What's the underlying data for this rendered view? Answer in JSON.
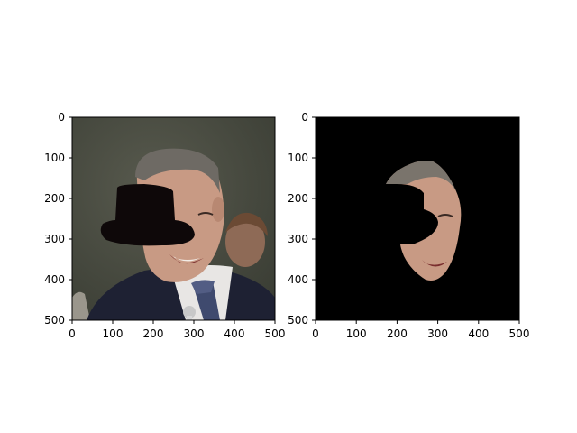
{
  "figure": {
    "background": "#ffffff",
    "axis_color": "#000000"
  },
  "chart_data": [
    {
      "type": "image",
      "content": "photo of a smiling man in a dark suit with a black bowler-hat shape pasted over his upper face",
      "xlim": [
        0,
        500
      ],
      "ylim": [
        500,
        0
      ],
      "xticks": [
        0,
        100,
        200,
        300,
        400,
        500
      ],
      "yticks": [
        0,
        100,
        200,
        300,
        400,
        500
      ],
      "tick_labels_x": [
        "0",
        "100",
        "200",
        "300",
        "400",
        "500"
      ],
      "tick_labels_y": [
        "0",
        "100",
        "200",
        "300",
        "400",
        "500"
      ],
      "colors": {
        "wall": "#4a4d42",
        "suit": "#1e2133",
        "hat": "#0e0809",
        "skin": "#c89a84"
      }
    },
    {
      "type": "image",
      "content": "same face masked out on a black background, with the hat region removed",
      "xlim": [
        0,
        500
      ],
      "ylim": [
        500,
        0
      ],
      "xticks": [
        0,
        100,
        200,
        300,
        400,
        500
      ],
      "yticks": [
        0,
        100,
        200,
        300,
        400,
        500
      ],
      "tick_labels_x": [
        "0",
        "100",
        "200",
        "300",
        "400",
        "500"
      ],
      "tick_labels_y": [
        "0",
        "100",
        "200",
        "300",
        "400",
        "500"
      ],
      "colors": {
        "background": "#000000",
        "skin": "#c89a84"
      }
    }
  ]
}
